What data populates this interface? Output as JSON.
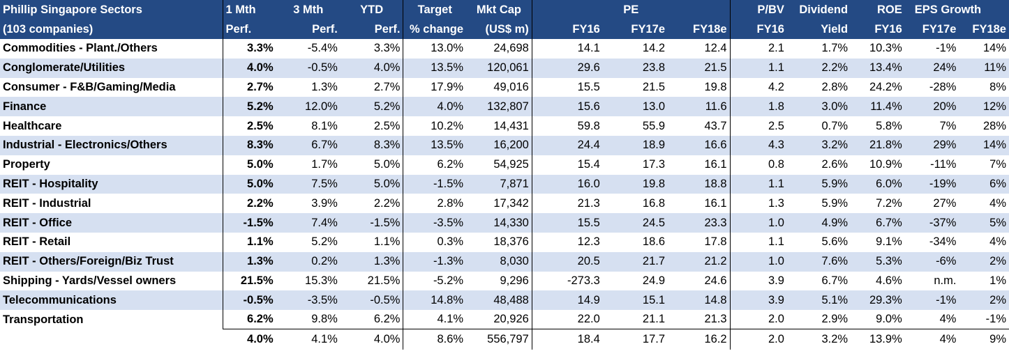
{
  "header": {
    "sector_title": "Phillip Singapore Sectors",
    "sector_sub": "(103 companies)",
    "cols_top": [
      "1 Mth",
      "3 Mth",
      "YTD",
      "Target",
      "Mkt Cap",
      "PE",
      "P/BV",
      "Dividend",
      "ROE",
      "EPS Growth"
    ],
    "cols_bottom": [
      "Perf.",
      "Perf.",
      "Perf.",
      "% change",
      "(US$ m)",
      "FY16",
      "FY17e",
      "FY18e",
      "FY16",
      "Yield",
      "FY16",
      "FY17e",
      "FY18e"
    ]
  },
  "rows": [
    [
      "Commodities - Plant./Others",
      "3.3%",
      "-5.4%",
      "3.3%",
      "13.0%",
      "24,698",
      "14.1",
      "14.2",
      "12.4",
      "2.1",
      "1.7%",
      "10.3%",
      "-1%",
      "14%"
    ],
    [
      "Conglomerate/Utilities",
      "4.0%",
      "-0.5%",
      "4.0%",
      "13.5%",
      "120,061",
      "29.6",
      "23.8",
      "21.5",
      "1.1",
      "2.2%",
      "13.4%",
      "24%",
      "11%"
    ],
    [
      "Consumer - F&B/Gaming/Media",
      "2.7%",
      "1.3%",
      "2.7%",
      "17.9%",
      "49,016",
      "15.5",
      "21.5",
      "19.8",
      "4.2",
      "2.8%",
      "24.2%",
      "-28%",
      "8%"
    ],
    [
      "Finance",
      "5.2%",
      "12.0%",
      "5.2%",
      "4.0%",
      "132,807",
      "15.6",
      "13.0",
      "11.6",
      "1.8",
      "3.0%",
      "11.4%",
      "20%",
      "12%"
    ],
    [
      "Healthcare",
      "2.5%",
      "8.1%",
      "2.5%",
      "10.2%",
      "14,431",
      "59.8",
      "55.9",
      "43.7",
      "2.5",
      "0.7%",
      "5.8%",
      "7%",
      "28%"
    ],
    [
      "Industrial - Electronics/Others",
      "8.3%",
      "6.7%",
      "8.3%",
      "13.5%",
      "16,200",
      "24.4",
      "18.9",
      "16.6",
      "4.3",
      "3.2%",
      "21.8%",
      "29%",
      "14%"
    ],
    [
      "Property",
      "5.0%",
      "1.7%",
      "5.0%",
      "6.2%",
      "54,925",
      "15.4",
      "17.3",
      "16.1",
      "0.8",
      "2.6%",
      "10.9%",
      "-11%",
      "7%"
    ],
    [
      "REIT - Hospitality",
      "5.0%",
      "7.5%",
      "5.0%",
      "-1.5%",
      "7,871",
      "16.0",
      "19.8",
      "18.8",
      "1.1",
      "5.9%",
      "6.0%",
      "-19%",
      "6%"
    ],
    [
      "REIT - Industrial",
      "2.2%",
      "3.9%",
      "2.2%",
      "2.8%",
      "17,342",
      "21.3",
      "16.8",
      "16.1",
      "1.3",
      "5.9%",
      "7.2%",
      "27%",
      "4%"
    ],
    [
      "REIT - Office",
      "-1.5%",
      "7.4%",
      "-1.5%",
      "-3.5%",
      "14,330",
      "15.5",
      "24.5",
      "23.3",
      "1.0",
      "4.9%",
      "6.7%",
      "-37%",
      "5%"
    ],
    [
      "REIT - Retail",
      "1.1%",
      "5.2%",
      "1.1%",
      "0.3%",
      "18,376",
      "12.3",
      "18.6",
      "17.8",
      "1.1",
      "5.6%",
      "9.1%",
      "-34%",
      "4%"
    ],
    [
      "REIT - Others/Foreign/Biz Trust",
      "1.3%",
      "0.2%",
      "1.3%",
      "-1.3%",
      "8,030",
      "20.5",
      "21.7",
      "21.2",
      "1.0",
      "7.6%",
      "5.3%",
      "-6%",
      "2%"
    ],
    [
      "Shipping - Yards/Vessel owners",
      "21.5%",
      "15.3%",
      "21.5%",
      "-5.2%",
      "9,296",
      "-273.3",
      "24.9",
      "24.6",
      "3.9",
      "6.7%",
      "4.6%",
      "n.m.",
      "1%"
    ],
    [
      "Telecommunications",
      "-0.5%",
      "-3.5%",
      "-0.5%",
      "14.8%",
      "48,488",
      "14.9",
      "15.1",
      "14.8",
      "3.9",
      "5.1%",
      "29.3%",
      "-1%",
      "2%"
    ],
    [
      "Transportation",
      "6.2%",
      "9.8%",
      "6.2%",
      "4.1%",
      "20,926",
      "22.0",
      "21.1",
      "21.3",
      "2.0",
      "2.9%",
      "9.0%",
      "4%",
      "-1%"
    ]
  ],
  "total": [
    "4.0%",
    "4.1%",
    "4.0%",
    "8.6%",
    "556,797",
    "18.4",
    "17.7",
    "16.2",
    "2.0",
    "3.2%",
    "13.9%",
    "4%",
    "9%"
  ]
}
